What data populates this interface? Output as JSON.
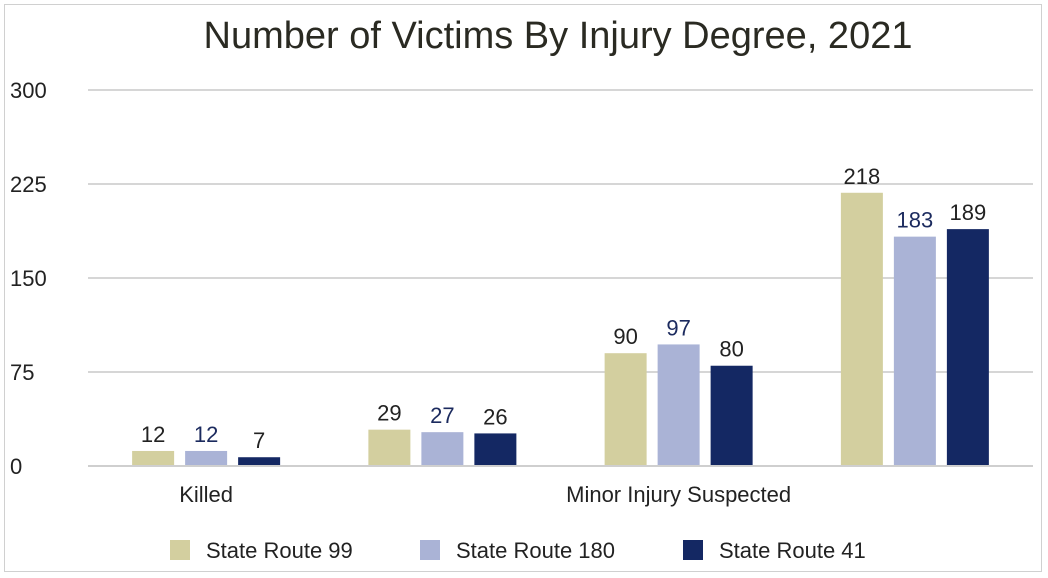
{
  "chart_data": {
    "type": "bar",
    "title": "Number of Victims By Injury Degree, 2021",
    "xlabel": "",
    "ylabel": "",
    "ylim": [
      0,
      300
    ],
    "yticks": [
      0,
      75,
      150,
      225,
      300
    ],
    "categories": [
      "Killed",
      "",
      "Minor Injury Suspected",
      ""
    ],
    "series": [
      {
        "name": "State Route 99",
        "values": [
          12,
          29,
          90,
          218
        ],
        "color": "#d3cf9f",
        "label_color": "#222222"
      },
      {
        "name": "State Route 180",
        "values": [
          12,
          27,
          97,
          183
        ],
        "color": "#aab3d6",
        "label_color": "#1b2a5e"
      },
      {
        "name": "State Route 41",
        "values": [
          7,
          26,
          80,
          189
        ],
        "color": "#142863",
        "label_color": "#222222"
      }
    ],
    "grid": true,
    "legend_position": "bottom"
  }
}
